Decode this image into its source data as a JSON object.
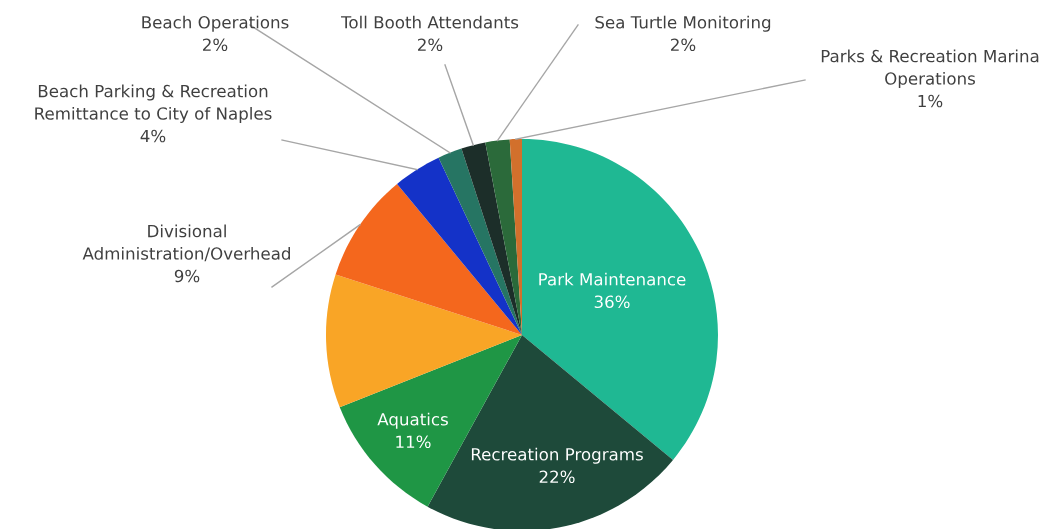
{
  "chart_data": {
    "type": "pie",
    "categories": [
      "Park Maintenance",
      "Recreation Programs",
      "Aquatics",
      null,
      "Divisional\nAdministration/Overhead",
      "Beach Parking & Recreation\nRemittance to City of Naples",
      "Beach Operations",
      "Toll Booth Attendants",
      "Sea Turtle Monitoring",
      "Parks & Recreation Marina\nOperations"
    ],
    "values": [
      36,
      22,
      11,
      11,
      9,
      4,
      2,
      2,
      2,
      1
    ],
    "value_labels": [
      "36%",
      "22%",
      "11%",
      null,
      "9%",
      "4%",
      "2%",
      "2%",
      "2%",
      "1%"
    ],
    "colors": [
      "#1fb893",
      "#1e4a3a",
      "#1f9645",
      "#f9a526",
      "#f4671d",
      "#1432c8",
      "#267563",
      "#1c2e29",
      "#2b6a3a",
      "#d2702c"
    ],
    "legend": false
  }
}
